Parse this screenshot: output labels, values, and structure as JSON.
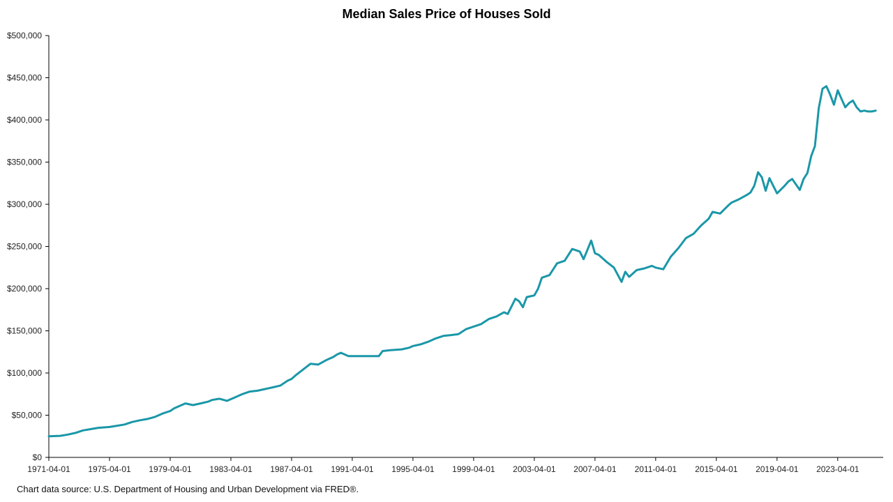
{
  "chart_data": {
    "type": "line",
    "title": "Median Sales Price of Houses Sold",
    "xlabel": "",
    "ylabel": "",
    "source": "Chart data source: U.S. Department of Housing and Urban Development via FRED®.",
    "ylim": [
      0,
      500000
    ],
    "y_ticks": [
      0,
      50000,
      100000,
      150000,
      200000,
      250000,
      300000,
      350000,
      400000,
      450000,
      500000
    ],
    "y_tick_labels": [
      "$0",
      "$50,000",
      "$100,000",
      "$150,000",
      "$200,000",
      "$250,000",
      "$300,000",
      "$350,000",
      "$400,000",
      "$450,000",
      "$500,000"
    ],
    "xlim": [
      "1971-04-01",
      "2026-04-01"
    ],
    "x_ticks": [
      "1971-04-01",
      "1975-04-01",
      "1979-04-01",
      "1983-04-01",
      "1987-04-01",
      "1991-04-01",
      "1995-04-01",
      "1999-04-01",
      "2003-04-01",
      "2007-04-01",
      "2011-04-01",
      "2015-04-01",
      "2019-04-01",
      "2023-04-01"
    ],
    "grid": false,
    "line_color": "#1a97a8",
    "series": [
      {
        "x": [
          "1971-04-01",
          "1972-01-01",
          "1972-07-01",
          "1973-01-01",
          "1973-07-01",
          "1974-01-01",
          "1974-07-01",
          "1975-04-01",
          "1975-10-01",
          "1976-04-01",
          "1976-10-01",
          "1977-04-01",
          "1977-10-01",
          "1978-04-01",
          "1978-10-01",
          "1979-04-01",
          "1979-07-01",
          "1979-10-01",
          "1980-04-01",
          "1980-10-01",
          "1981-04-01",
          "1981-10-01",
          "1982-01-01",
          "1982-07-01",
          "1983-01-01",
          "1983-04-01",
          "1983-07-01",
          "1984-01-01",
          "1984-07-01",
          "1985-01-01",
          "1985-07-01",
          "1986-01-01",
          "1986-07-01",
          "1987-01-01",
          "1987-04-01",
          "1987-07-01",
          "1988-01-01",
          "1988-07-01",
          "1989-01-01",
          "1989-07-01",
          "1989-10-01",
          "1990-01-01",
          "1990-04-01",
          "1990-07-01",
          "1991-01-01",
          "1992-01-01",
          "1993-01-01",
          "1993-04-01",
          "1993-10-01",
          "1994-07-01",
          "1995-01-01",
          "1995-04-01",
          "1995-10-01",
          "1996-04-01",
          "1996-10-01",
          "1997-04-01",
          "1997-10-01",
          "1998-04-01",
          "1998-10-01",
          "1999-04-01",
          "1999-10-01",
          "2000-04-01",
          "2000-10-01",
          "2001-04-01",
          "2001-07-01",
          "2002-01-01",
          "2002-04-01",
          "2002-07-01",
          "2002-10-01",
          "2003-04-01",
          "2003-07-01",
          "2003-10-01",
          "2004-04-01",
          "2004-10-01",
          "2005-04-01",
          "2005-10-01",
          "2006-04-01",
          "2006-07-01",
          "2006-10-01",
          "2007-01-01",
          "2007-04-01",
          "2007-07-01",
          "2008-01-01",
          "2008-07-01",
          "2009-01-01",
          "2009-04-01",
          "2009-07-01",
          "2010-01-01",
          "2010-07-01",
          "2011-01-01",
          "2011-04-01",
          "2011-10-01",
          "2012-04-01",
          "2012-10-01",
          "2013-04-01",
          "2013-10-01",
          "2014-04-01",
          "2014-10-01",
          "2015-01-01",
          "2015-07-01",
          "2016-01-01",
          "2016-04-01",
          "2016-10-01",
          "2017-04-01",
          "2017-07-01",
          "2017-10-01",
          "2018-01-01",
          "2018-04-01",
          "2018-07-01",
          "2018-10-01",
          "2019-01-01",
          "2019-04-01",
          "2019-10-01",
          "2020-01-01",
          "2020-04-01",
          "2020-10-01",
          "2021-01-01",
          "2021-04-01",
          "2021-07-01",
          "2021-10-01",
          "2022-01-01",
          "2022-04-01",
          "2022-07-01",
          "2022-10-01",
          "2023-01-01",
          "2023-04-01",
          "2023-07-01",
          "2023-10-01",
          "2024-01-01",
          "2024-04-01",
          "2024-07-01",
          "2024-10-01",
          "2025-01-01",
          "2025-04-01",
          "2025-07-01",
          "2025-10-01"
        ],
        "values": [
          25000,
          25500,
          27000,
          29000,
          32000,
          33500,
          35000,
          36000,
          37500,
          39000,
          42000,
          44000,
          45500,
          48000,
          52000,
          55000,
          58000,
          60000,
          64000,
          62000,
          64000,
          66000,
          68000,
          69500,
          67000,
          69000,
          71000,
          75000,
          78000,
          79000,
          81000,
          83000,
          85000,
          91000,
          93000,
          97000,
          104000,
          111000,
          110000,
          115000,
          117000,
          119000,
          122000,
          124000,
          120000,
          120000,
          120000,
          126000,
          127000,
          128000,
          130000,
          132000,
          134000,
          137000,
          141000,
          144000,
          145000,
          146000,
          152000,
          155000,
          158000,
          164000,
          167000,
          172000,
          170000,
          188000,
          185000,
          178000,
          190000,
          192000,
          200000,
          213000,
          216000,
          230000,
          233000,
          247000,
          244000,
          235000,
          246000,
          257000,
          242000,
          240000,
          232000,
          225000,
          208000,
          220000,
          214000,
          222000,
          224000,
          227000,
          225000,
          223000,
          238000,
          248000,
          260000,
          265000,
          275000,
          283000,
          291000,
          289000,
          298000,
          302000,
          306000,
          311000,
          314000,
          322000,
          338000,
          332000,
          316000,
          331000,
          322000,
          313000,
          322000,
          327000,
          330000,
          317000,
          330000,
          337000,
          357000,
          369000,
          414000,
          437000,
          440000,
          430000,
          418000,
          435000,
          425000,
          415000,
          420000,
          423000,
          415000,
          410000,
          411000,
          410000,
          410000,
          411000
        ]
      }
    ]
  }
}
